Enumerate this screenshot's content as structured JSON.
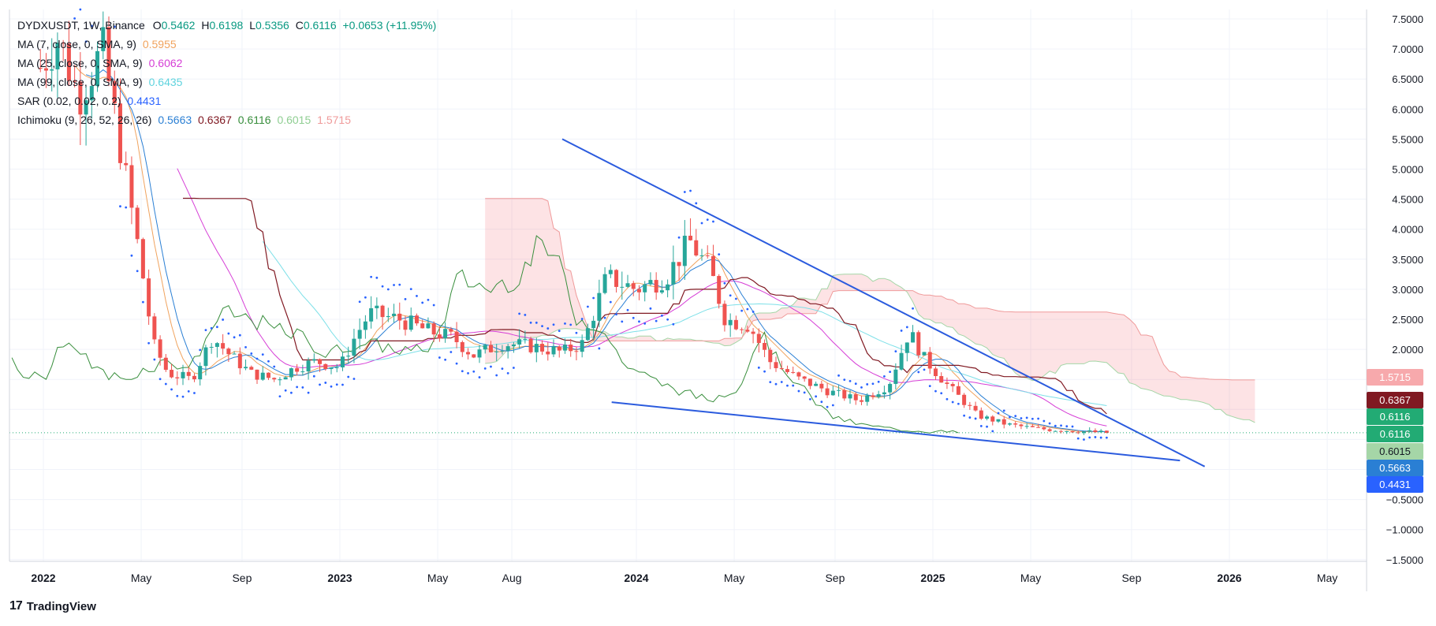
{
  "header": {
    "symbol": "DYDXUSDT, 1W, Binance",
    "open_label": "O",
    "open": "0.5462",
    "high_label": "H",
    "high": "0.6198",
    "low_label": "L",
    "low": "0.5356",
    "close_label": "C",
    "close": "0.6116",
    "change": "+0.0653 (+11.95%)"
  },
  "indicators": [
    {
      "label": "MA (7, close, 0, SMA, 9)",
      "value": "0.5955",
      "color": "#f0a35e"
    },
    {
      "label": "MA (25, close, 0, SMA, 9)",
      "value": "0.6062",
      "color": "#d63ed6"
    },
    {
      "label": "MA (99, close, 0, SMA, 9)",
      "value": "0.6435",
      "color": "#7ee0e8"
    },
    {
      "label": "SAR (0.02, 0.02, 0.2)",
      "value": "0.4431",
      "color": "#2962ff"
    }
  ],
  "ichimoku": {
    "label": "Ichimoku (9, 26, 52, 26, 26)",
    "values": [
      {
        "v": "0.5663",
        "color": "#2a7fd4"
      },
      {
        "v": "0.6367",
        "color": "#801922"
      },
      {
        "v": "0.6116",
        "color": "#388e3c"
      },
      {
        "v": "0.6015",
        "color": "#a5d6a7"
      },
      {
        "v": "1.5715",
        "color": "#ef9a9a"
      }
    ]
  },
  "price_tags": [
    {
      "text": "1.5715",
      "bg": "#f7a9ac",
      "fg": "#ffffff"
    },
    {
      "text": "0.6367",
      "bg": "#801922",
      "fg": "#ffffff"
    },
    {
      "text": "0.6116",
      "bg": "#22ab74",
      "fg": "#ffffff"
    },
    {
      "text": "0.6116",
      "bg": "#22ab74",
      "fg": "#ffffff"
    },
    {
      "text": "0.6015",
      "bg": "#a5d6a7",
      "fg": "#131722"
    },
    {
      "text": "0.5663",
      "bg": "#2a7fd4",
      "fg": "#ffffff"
    },
    {
      "text": "0.4431",
      "bg": "#2962ff",
      "fg": "#ffffff"
    }
  ],
  "footer": {
    "brand": "TradingView",
    "logo": "17"
  },
  "colors": {
    "up": "#26a69a",
    "down": "#ef5350",
    "trendline": "#2b5bde"
  },
  "chart_data": {
    "type": "candlestick",
    "x_ticks": [
      "2022",
      "May",
      "Sep",
      "2023",
      "May",
      "Aug",
      "2024",
      "May",
      "Sep",
      "2025",
      "May",
      "Sep",
      "2026",
      "May"
    ],
    "x_ticks_bold": [
      "2022",
      "2023",
      "2024",
      "2025",
      "2026"
    ],
    "y_ticks": [
      "7.5000",
      "7.0000",
      "6.5000",
      "6.0000",
      "5.5000",
      "5.0000",
      "4.5000",
      "4.0000",
      "3.5000",
      "3.0000",
      "2.5000",
      "2.0000",
      "−0.5000",
      "−1.0000",
      "−1.5000"
    ],
    "ylim": [
      -1.6,
      7.6
    ],
    "trendlines": [
      {
        "name": "upper",
        "from": {
          "date": "2023-10",
          "price": 5.5
        },
        "to": {
          "date": "2025-12",
          "price": 0.05
        }
      },
      {
        "name": "lower",
        "from": {
          "date": "2023-12",
          "price": 1.12
        },
        "to": {
          "date": "2025-11",
          "price": 0.15
        }
      }
    ],
    "last_close": 0.6116
  }
}
